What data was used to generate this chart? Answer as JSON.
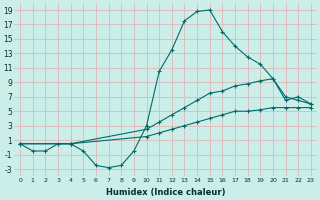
{
  "xlabel": "Humidex (Indice chaleur)",
  "background_color": "#cceee8",
  "grid_color": "#ddb8b8",
  "line_color": "#006b6b",
  "xlim": [
    -0.5,
    23.5
  ],
  "ylim": [
    -4,
    20
  ],
  "xticks": [
    0,
    1,
    2,
    3,
    4,
    5,
    6,
    7,
    8,
    9,
    10,
    11,
    12,
    13,
    14,
    15,
    16,
    17,
    18,
    19,
    20,
    21,
    22,
    23
  ],
  "yticks": [
    -3,
    -1,
    1,
    3,
    5,
    7,
    9,
    11,
    13,
    15,
    17,
    19
  ],
  "series1_x": [
    0,
    1,
    2,
    3,
    4,
    5,
    6,
    7,
    8,
    9,
    10,
    11,
    12,
    13,
    14,
    15,
    16,
    17,
    18,
    19,
    20,
    21,
    22,
    23
  ],
  "series1_y": [
    0.5,
    -0.5,
    -0.5,
    0.5,
    0.5,
    -0.5,
    -2.5,
    -2.8,
    -2.5,
    -0.5,
    3.0,
    10.5,
    13.5,
    17.5,
    18.8,
    19.0,
    16.0,
    14.0,
    12.5,
    11.5,
    9.5,
    6.5,
    7.0,
    6.0
  ],
  "series2_x": [
    0,
    4,
    10,
    11,
    12,
    13,
    14,
    15,
    16,
    17,
    18,
    19,
    20,
    21,
    22,
    23
  ],
  "series2_y": [
    0.5,
    0.5,
    2.5,
    3.5,
    4.5,
    5.5,
    6.5,
    7.5,
    7.8,
    8.5,
    8.8,
    9.2,
    9.5,
    7.0,
    6.5,
    6.0
  ],
  "series3_x": [
    0,
    4,
    10,
    11,
    12,
    13,
    14,
    15,
    16,
    17,
    18,
    19,
    20,
    21,
    22,
    23
  ],
  "series3_y": [
    0.5,
    0.5,
    1.5,
    2.0,
    2.5,
    3.0,
    3.5,
    4.0,
    4.5,
    5.0,
    5.0,
    5.2,
    5.5,
    5.5,
    5.5,
    5.5
  ],
  "xlabel_fontsize": 6,
  "xlabel_fontweight": "bold",
  "tick_fontsize_x": 4.5,
  "tick_fontsize_y": 5.5
}
